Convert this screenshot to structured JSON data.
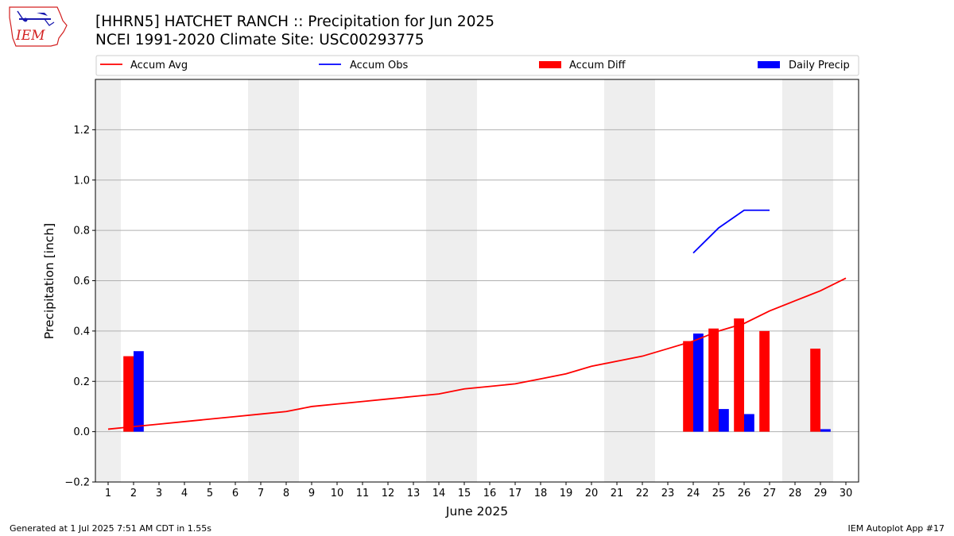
{
  "header": {
    "title": "[HHRN5] HATCHET RANCH :: Precipitation for Jun 2025",
    "subtitle": "NCEI 1991-2020 Climate Site: USC00293775",
    "logo_text": "IEM"
  },
  "footer": {
    "generated": "Generated at 1 Jul 2025 7:51 AM CDT in 1.55s",
    "app": "IEM Autoplot App #17"
  },
  "colors": {
    "accum_avg": "#ff0000",
    "accum_obs": "#0000ff",
    "accum_diff": "#ff0000",
    "daily_precip": "#0000ff",
    "weekend_shade": "#eeeeee",
    "grid": "#b0b0b0"
  },
  "chart_data": {
    "type": "bar",
    "xlabel": "June 2025",
    "ylabel": "Precipitation [inch]",
    "ylim": [
      -0.2,
      1.4
    ],
    "xlim": [
      0.5,
      30.5
    ],
    "y_ticks": [
      -0.2,
      0.0,
      0.2,
      0.4,
      0.6,
      0.8,
      1.0,
      1.2
    ],
    "y_tick_labels": [
      "−0.2",
      "0.0",
      "0.2",
      "0.4",
      "0.6",
      "0.8",
      "1.0",
      "1.2"
    ],
    "grid": "horizontal",
    "legend_placement": "top",
    "days": [
      1,
      2,
      3,
      4,
      5,
      6,
      7,
      8,
      9,
      10,
      11,
      12,
      13,
      14,
      15,
      16,
      17,
      18,
      19,
      20,
      21,
      22,
      23,
      24,
      25,
      26,
      27,
      28,
      29,
      30
    ],
    "weekend_days": [
      1,
      7,
      8,
      14,
      15,
      21,
      22,
      28,
      29
    ],
    "series": [
      {
        "name": "Accum Avg",
        "kind": "line",
        "x": [
          1,
          2,
          3,
          4,
          5,
          6,
          7,
          8,
          9,
          10,
          11,
          12,
          13,
          14,
          15,
          16,
          17,
          18,
          19,
          20,
          21,
          22,
          23,
          24,
          25,
          26,
          27,
          28,
          29,
          30
        ],
        "values": [
          0.01,
          0.02,
          0.03,
          0.04,
          0.05,
          0.06,
          0.07,
          0.08,
          0.1,
          0.11,
          0.12,
          0.13,
          0.14,
          0.15,
          0.17,
          0.18,
          0.19,
          0.21,
          0.23,
          0.26,
          0.28,
          0.3,
          0.33,
          0.36,
          0.4,
          0.43,
          0.48,
          0.52,
          0.56,
          0.61
        ]
      },
      {
        "name": "Accum Obs",
        "kind": "line",
        "x": [
          24,
          25,
          26,
          27
        ],
        "values": [
          0.71,
          0.81,
          0.88,
          0.88
        ]
      },
      {
        "name": "Accum Diff",
        "kind": "bar",
        "x": [
          2,
          24,
          25,
          26,
          27,
          29
        ],
        "values": [
          0.3,
          0.36,
          0.41,
          0.45,
          0.4,
          0.33
        ]
      },
      {
        "name": "Daily Precip",
        "kind": "bar",
        "x": [
          2,
          24,
          25,
          26,
          29
        ],
        "values": [
          0.32,
          0.39,
          0.09,
          0.07,
          0.01
        ]
      }
    ]
  }
}
